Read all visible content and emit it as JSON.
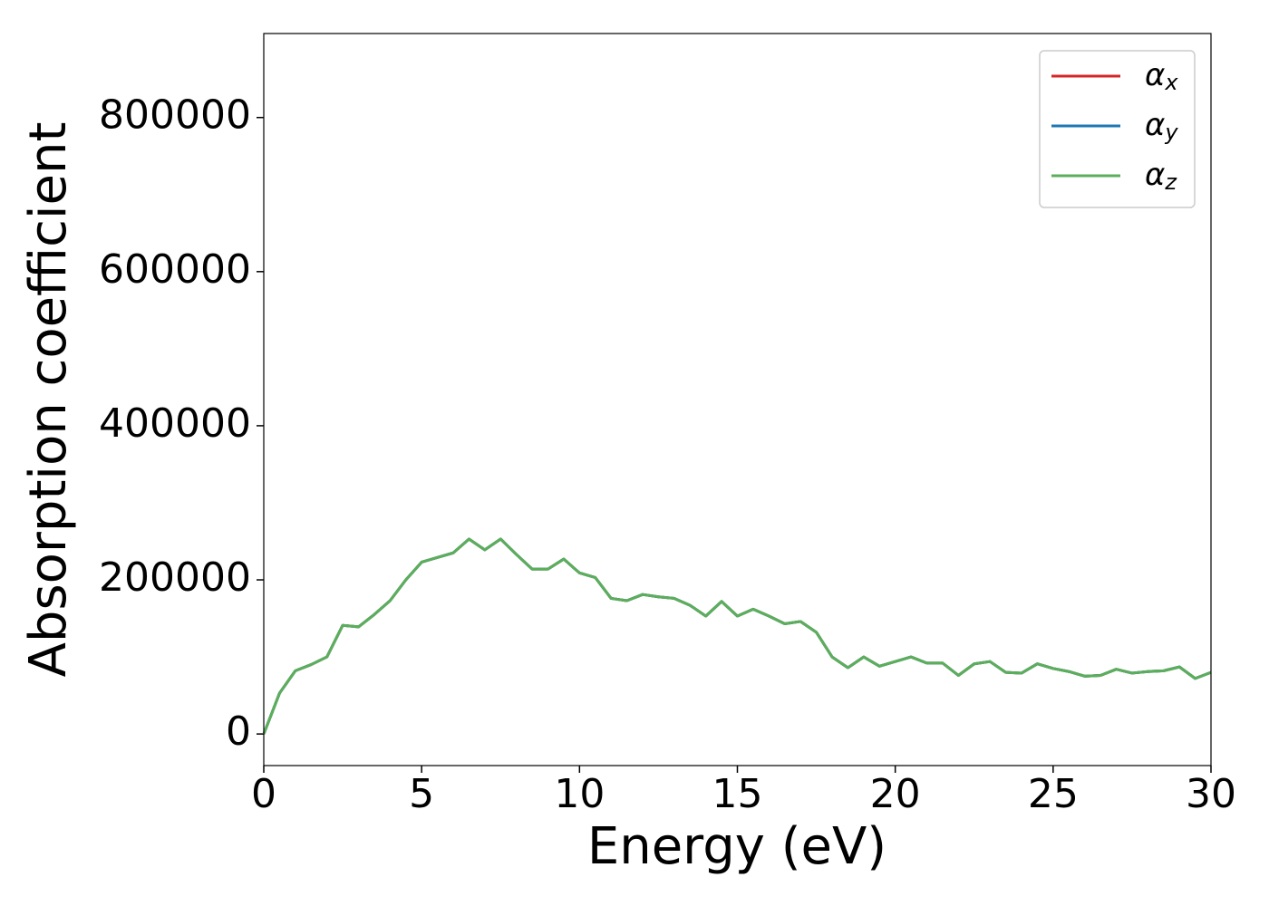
{
  "chart_data": {
    "type": "line",
    "xlabel": "Energy (eV)",
    "ylabel": "Absorption coefficient",
    "x": [
      0,
      0.5,
      1,
      1.5,
      2,
      2.5,
      3,
      3.5,
      4,
      4.5,
      5,
      5.5,
      6,
      6.5,
      7,
      7.5,
      8,
      8.5,
      9,
      9.5,
      10,
      10.5,
      11,
      11.5,
      12,
      12.5,
      13,
      13.5,
      14,
      14.5,
      15,
      15.5,
      16,
      16.5,
      17,
      17.5,
      18,
      18.5,
      19,
      19.5,
      20,
      20.5,
      21,
      21.5,
      22,
      22.5,
      23,
      23.5,
      24,
      24.5,
      25,
      25.5,
      26,
      26.5,
      27,
      27.5,
      28,
      28.5,
      29,
      29.5,
      30
    ],
    "series": [
      {
        "name": "αx",
        "color": "#d62728",
        "values": [
          0,
          53000,
          82000,
          90000,
          100000,
          141000,
          139000,
          155000,
          173000,
          200000,
          223000,
          229000,
          235000,
          253000,
          239000,
          253000,
          233000,
          214000,
          214000,
          227000,
          209000,
          203000,
          176000,
          173000,
          181000,
          178000,
          176000,
          167000,
          153000,
          172000,
          153000,
          162000,
          153000,
          143000,
          146000,
          132000,
          100000,
          86000,
          100000,
          88000,
          94000,
          100000,
          92000,
          92000,
          76000,
          91000,
          94000,
          80000,
          79000,
          91000,
          85000,
          81000,
          75000,
          76000,
          84000,
          79000,
          81000,
          82000,
          87000,
          72000,
          80000
        ]
      },
      {
        "name": "αy",
        "color": "#1f77b4",
        "values": [
          0,
          53000,
          82000,
          90000,
          100000,
          141000,
          139000,
          155000,
          173000,
          200000,
          223000,
          229000,
          235000,
          253000,
          239000,
          253000,
          233000,
          214000,
          214000,
          227000,
          209000,
          203000,
          176000,
          173000,
          181000,
          178000,
          176000,
          167000,
          153000,
          172000,
          153000,
          162000,
          153000,
          143000,
          146000,
          132000,
          100000,
          86000,
          100000,
          88000,
          94000,
          100000,
          92000,
          92000,
          76000,
          91000,
          94000,
          80000,
          79000,
          91000,
          85000,
          81000,
          75000,
          76000,
          84000,
          79000,
          81000,
          82000,
          87000,
          72000,
          80000
        ]
      },
      {
        "name": "αz",
        "color": "#5aaf5a",
        "values": [
          0,
          53000,
          82000,
          90000,
          100000,
          141000,
          139000,
          155000,
          173000,
          200000,
          223000,
          229000,
          235000,
          253000,
          239000,
          253000,
          233000,
          214000,
          214000,
          227000,
          209000,
          203000,
          176000,
          173000,
          181000,
          178000,
          176000,
          167000,
          153000,
          172000,
          153000,
          162000,
          153000,
          143000,
          146000,
          132000,
          100000,
          86000,
          100000,
          88000,
          94000,
          100000,
          92000,
          92000,
          76000,
          91000,
          94000,
          80000,
          79000,
          91000,
          85000,
          81000,
          75000,
          76000,
          84000,
          79000,
          81000,
          82000,
          87000,
          72000,
          80000
        ]
      }
    ],
    "xlim": [
      0,
      30
    ],
    "xticks": [
      0,
      5,
      10,
      15,
      20,
      25,
      30
    ],
    "ylim": [
      -41000,
      909000
    ],
    "yticks": [
      0,
      200000,
      400000,
      600000,
      800000
    ],
    "grid": false,
    "legend": "upper right"
  }
}
